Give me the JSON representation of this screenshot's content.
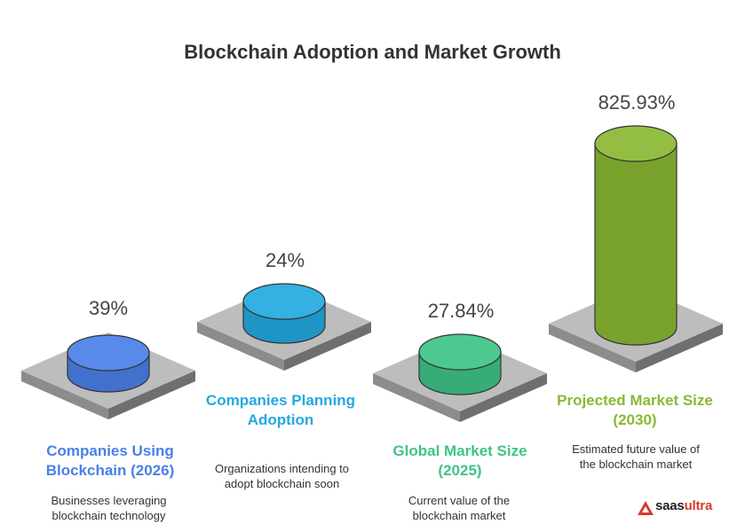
{
  "chart_data": {
    "type": "bar",
    "title": "Blockchain Adoption and Market Growth",
    "categories": [
      "Companies Using Blockchain (2026)",
      "Companies Planning Adoption",
      "Global Market Size (2025)",
      "Projected Market Size (2030)"
    ],
    "values": [
      39,
      24,
      27.84,
      825.93
    ],
    "value_labels": [
      "39%",
      "24%",
      "27.84%",
      "825.93%"
    ],
    "descriptions": [
      "Businesses leveraging blockchain technology",
      "Organizations intending to adopt blockchain soon",
      "Current value of the blockchain market",
      "Estimated future value of the blockchain market"
    ],
    "colors": [
      "#4a80e8",
      "#23a9e0",
      "#3ec486",
      "#8ab833"
    ]
  },
  "brand": {
    "name_prefix": "saas",
    "name_suffix": "ultra",
    "accent": "#d93a2b"
  }
}
